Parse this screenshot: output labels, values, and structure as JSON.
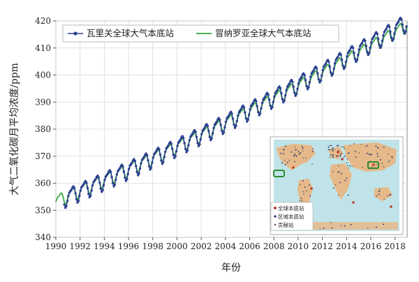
{
  "chart_data": {
    "type": "line",
    "title": "",
    "xlabel": "年份",
    "ylabel": "大气二氧化碳月平均浓度/ppm",
    "xlim": [
      1990,
      2019
    ],
    "ylim": [
      340,
      420
    ],
    "x_ticks": [
      "1990",
      "1992",
      "1994",
      "1996",
      "1998",
      "2000",
      "2002",
      "2004",
      "2006",
      "2008",
      "2010",
      "2012",
      "2014",
      "2016",
      "2018"
    ],
    "y_ticks": [
      "340",
      "350",
      "360",
      "370",
      "380",
      "390",
      "400",
      "410",
      "420"
    ],
    "grid": true,
    "legend_position": "top-left",
    "series": [
      {
        "name": "瓦里关全球大气本底站",
        "color": "#2b3f8f",
        "marker": "circle",
        "start_year": 1990.7,
        "end_year": 2019.0,
        "trend": {
          "base_year": 1991,
          "base_value": 355.2,
          "slope": 1.93,
          "curvature": 0.0135
        },
        "seasonal_amplitude": 4.0
      },
      {
        "name": "冒纳罗亚全球大气本底站",
        "color": "#4caf50",
        "marker": "none",
        "start_year": 1990.0,
        "end_year": 2019.0,
        "trend": {
          "base_year": 1991,
          "base_value": 355.4,
          "slope": 1.9,
          "curvature": 0.0125
        },
        "seasonal_amplitude": 3.0
      }
    ],
    "inset_map": {
      "legend": [
        {
          "label": "全球本底站",
          "color": "#c0392b"
        },
        {
          "label": "区域本底站",
          "color": "#1f2a6b"
        },
        {
          "label": "贡献站",
          "color": "#6b6b6b"
        }
      ],
      "highlight_color": "#2e8b2e",
      "ocean_color": "#bfe3e8",
      "land_color": "#e6b98a"
    }
  }
}
